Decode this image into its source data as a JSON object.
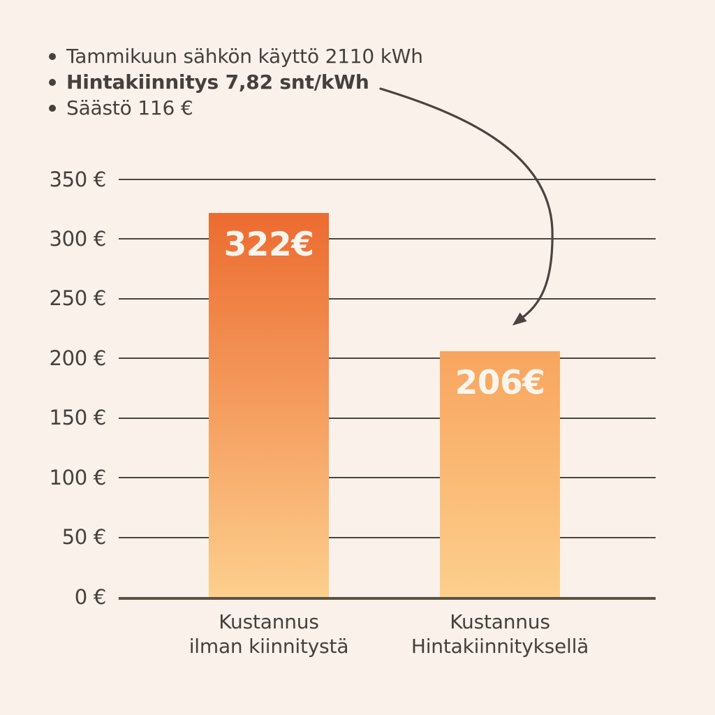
{
  "info_list": {
    "items": [
      {
        "text": "Tammikuun sähkön käyttö 2110 kWh",
        "bold": false
      },
      {
        "text": "Hintakiinnitys 7,82 snt/kWh",
        "bold": true
      },
      {
        "text": "Säästö 116 €",
        "bold": false
      }
    ]
  },
  "chart_data": {
    "type": "bar",
    "title": "",
    "categories": [
      [
        "Kustannus",
        "ilman kiinnitystä"
      ],
      [
        "Kustannus",
        "Hintakiinnityksellä"
      ]
    ],
    "values": [
      322,
      206
    ],
    "bar_labels": [
      "322€",
      "206€"
    ],
    "yticks": [
      350,
      300,
      250,
      200,
      150,
      100,
      50,
      0
    ],
    "ytick_labels": [
      "350 €",
      "300 €",
      "250 €",
      "200 €",
      "150 €",
      "100 €",
      "50 €",
      "0 €"
    ],
    "ylim": [
      0,
      350
    ],
    "grid": true,
    "legend": false,
    "xlabel": "",
    "ylabel": ""
  },
  "annotation_arrow": {
    "from_item": "Hintakiinnitys 7,82 snt/kWh",
    "to_bar": "206€"
  },
  "colors": {
    "background": "#F9F1EA",
    "text": "#45403C",
    "gridline": "#4C4642",
    "baseline": "#5C5244",
    "bar_without_top": "#EC6B30",
    "bar_without_bottom": "#FDCF8D",
    "bar_with_top": "#F8A55E",
    "bar_with_bottom": "#FDCF8D",
    "bar_value_text": "#FBF5ED",
    "arrow": "#4B433F"
  }
}
